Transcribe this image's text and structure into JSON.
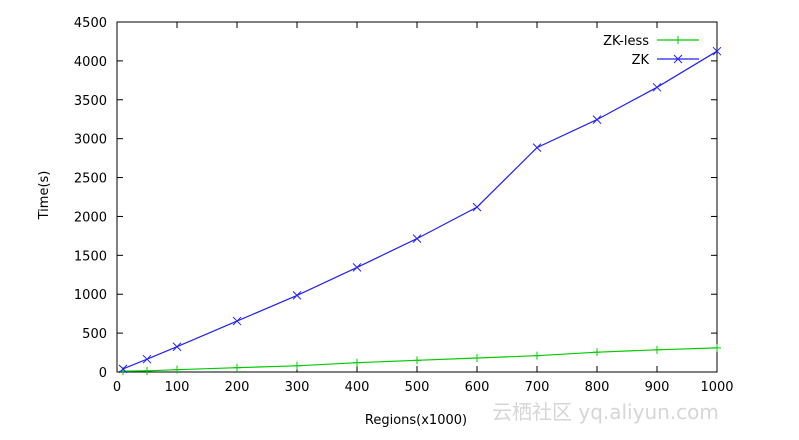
{
  "chart_data": {
    "type": "line",
    "title": "",
    "xlabel": "Regions(x1000)",
    "ylabel": "Time(s)",
    "xlim": [
      0,
      1000
    ],
    "ylim": [
      0,
      4500
    ],
    "xticks": [
      0,
      100,
      200,
      300,
      400,
      500,
      600,
      700,
      800,
      900,
      1000
    ],
    "yticks": [
      0,
      500,
      1000,
      1500,
      2000,
      2500,
      3000,
      3500,
      4000,
      4500
    ],
    "grid": false,
    "legend": "top-right",
    "series": [
      {
        "name": "ZK-less",
        "color": "#00cc00",
        "marker": "plus",
        "x": [
          10,
          50,
          100,
          200,
          300,
          400,
          500,
          600,
          700,
          800,
          900,
          1000
        ],
        "y": [
          10,
          15,
          30,
          55,
          80,
          120,
          150,
          180,
          210,
          255,
          285,
          310
        ]
      },
      {
        "name": "ZK",
        "color": "#2222ee",
        "marker": "x",
        "x": [
          10,
          50,
          100,
          200,
          300,
          400,
          500,
          600,
          700,
          800,
          900,
          1000
        ],
        "y": [
          40,
          165,
          325,
          655,
          985,
          1345,
          1715,
          2120,
          2885,
          3245,
          3660,
          4125
        ]
      }
    ]
  },
  "watermark": "云栖社区 yq.aliyun.com"
}
